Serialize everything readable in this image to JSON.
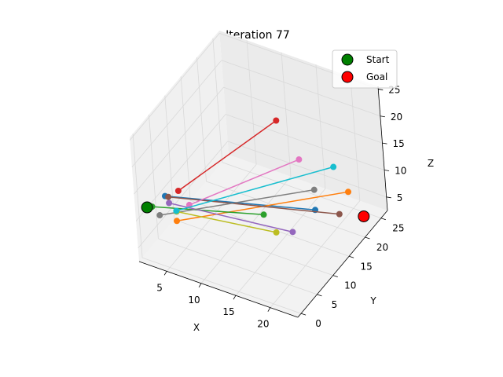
{
  "chart_data": {
    "type": "scatter",
    "title": "Iteration 77",
    "xlabel": "X",
    "ylabel": "Y",
    "zlabel": "Z",
    "xlim": [
      1,
      24
    ],
    "ylim": [
      -1,
      27
    ],
    "zlim": [
      2.5,
      25.5
    ],
    "x_ticks": [
      "5",
      "10",
      "15",
      "20"
    ],
    "y_ticks": [
      "0",
      "5",
      "10",
      "15",
      "20",
      "25"
    ],
    "z_ticks": [
      "5",
      "10",
      "15",
      "20",
      "25"
    ],
    "legend_placement": "top-right",
    "legend": [
      {
        "label": "Start",
        "color": "#008000"
      },
      {
        "label": "Goal",
        "color": "#ff0000"
      }
    ],
    "start": {
      "x": 1.5,
      "y": 1.5,
      "z": 11.0
    },
    "goal": {
      "x": 23.0,
      "y": 22.0,
      "z": 4.5
    },
    "tree_colors": [
      "#1f77b4",
      "#ff7f0e",
      "#2ca02c",
      "#d62728",
      "#9467bd",
      "#8c564b",
      "#e377c2",
      "#7f7f7f",
      "#bcbd22",
      "#17becf"
    ],
    "tree_edges": [
      [
        3,
        4,
        12,
        20,
        14,
        10
      ],
      [
        5,
        3,
        9,
        22,
        20,
        10
      ],
      [
        2,
        2,
        11,
        18,
        3,
        16
      ],
      [
        4,
        6,
        12,
        10,
        24,
        15
      ],
      [
        3,
        5,
        10,
        19,
        9,
        9
      ],
      [
        4,
        3,
        13,
        22,
        17,
        8
      ],
      [
        6,
        5,
        11,
        14,
        22,
        11
      ],
      [
        2,
        4,
        8,
        18,
        18,
        10
      ],
      [
        3,
        7,
        7,
        15,
        12,
        5
      ],
      [
        4,
        5,
        9,
        18,
        24,
        10
      ]
    ]
  }
}
